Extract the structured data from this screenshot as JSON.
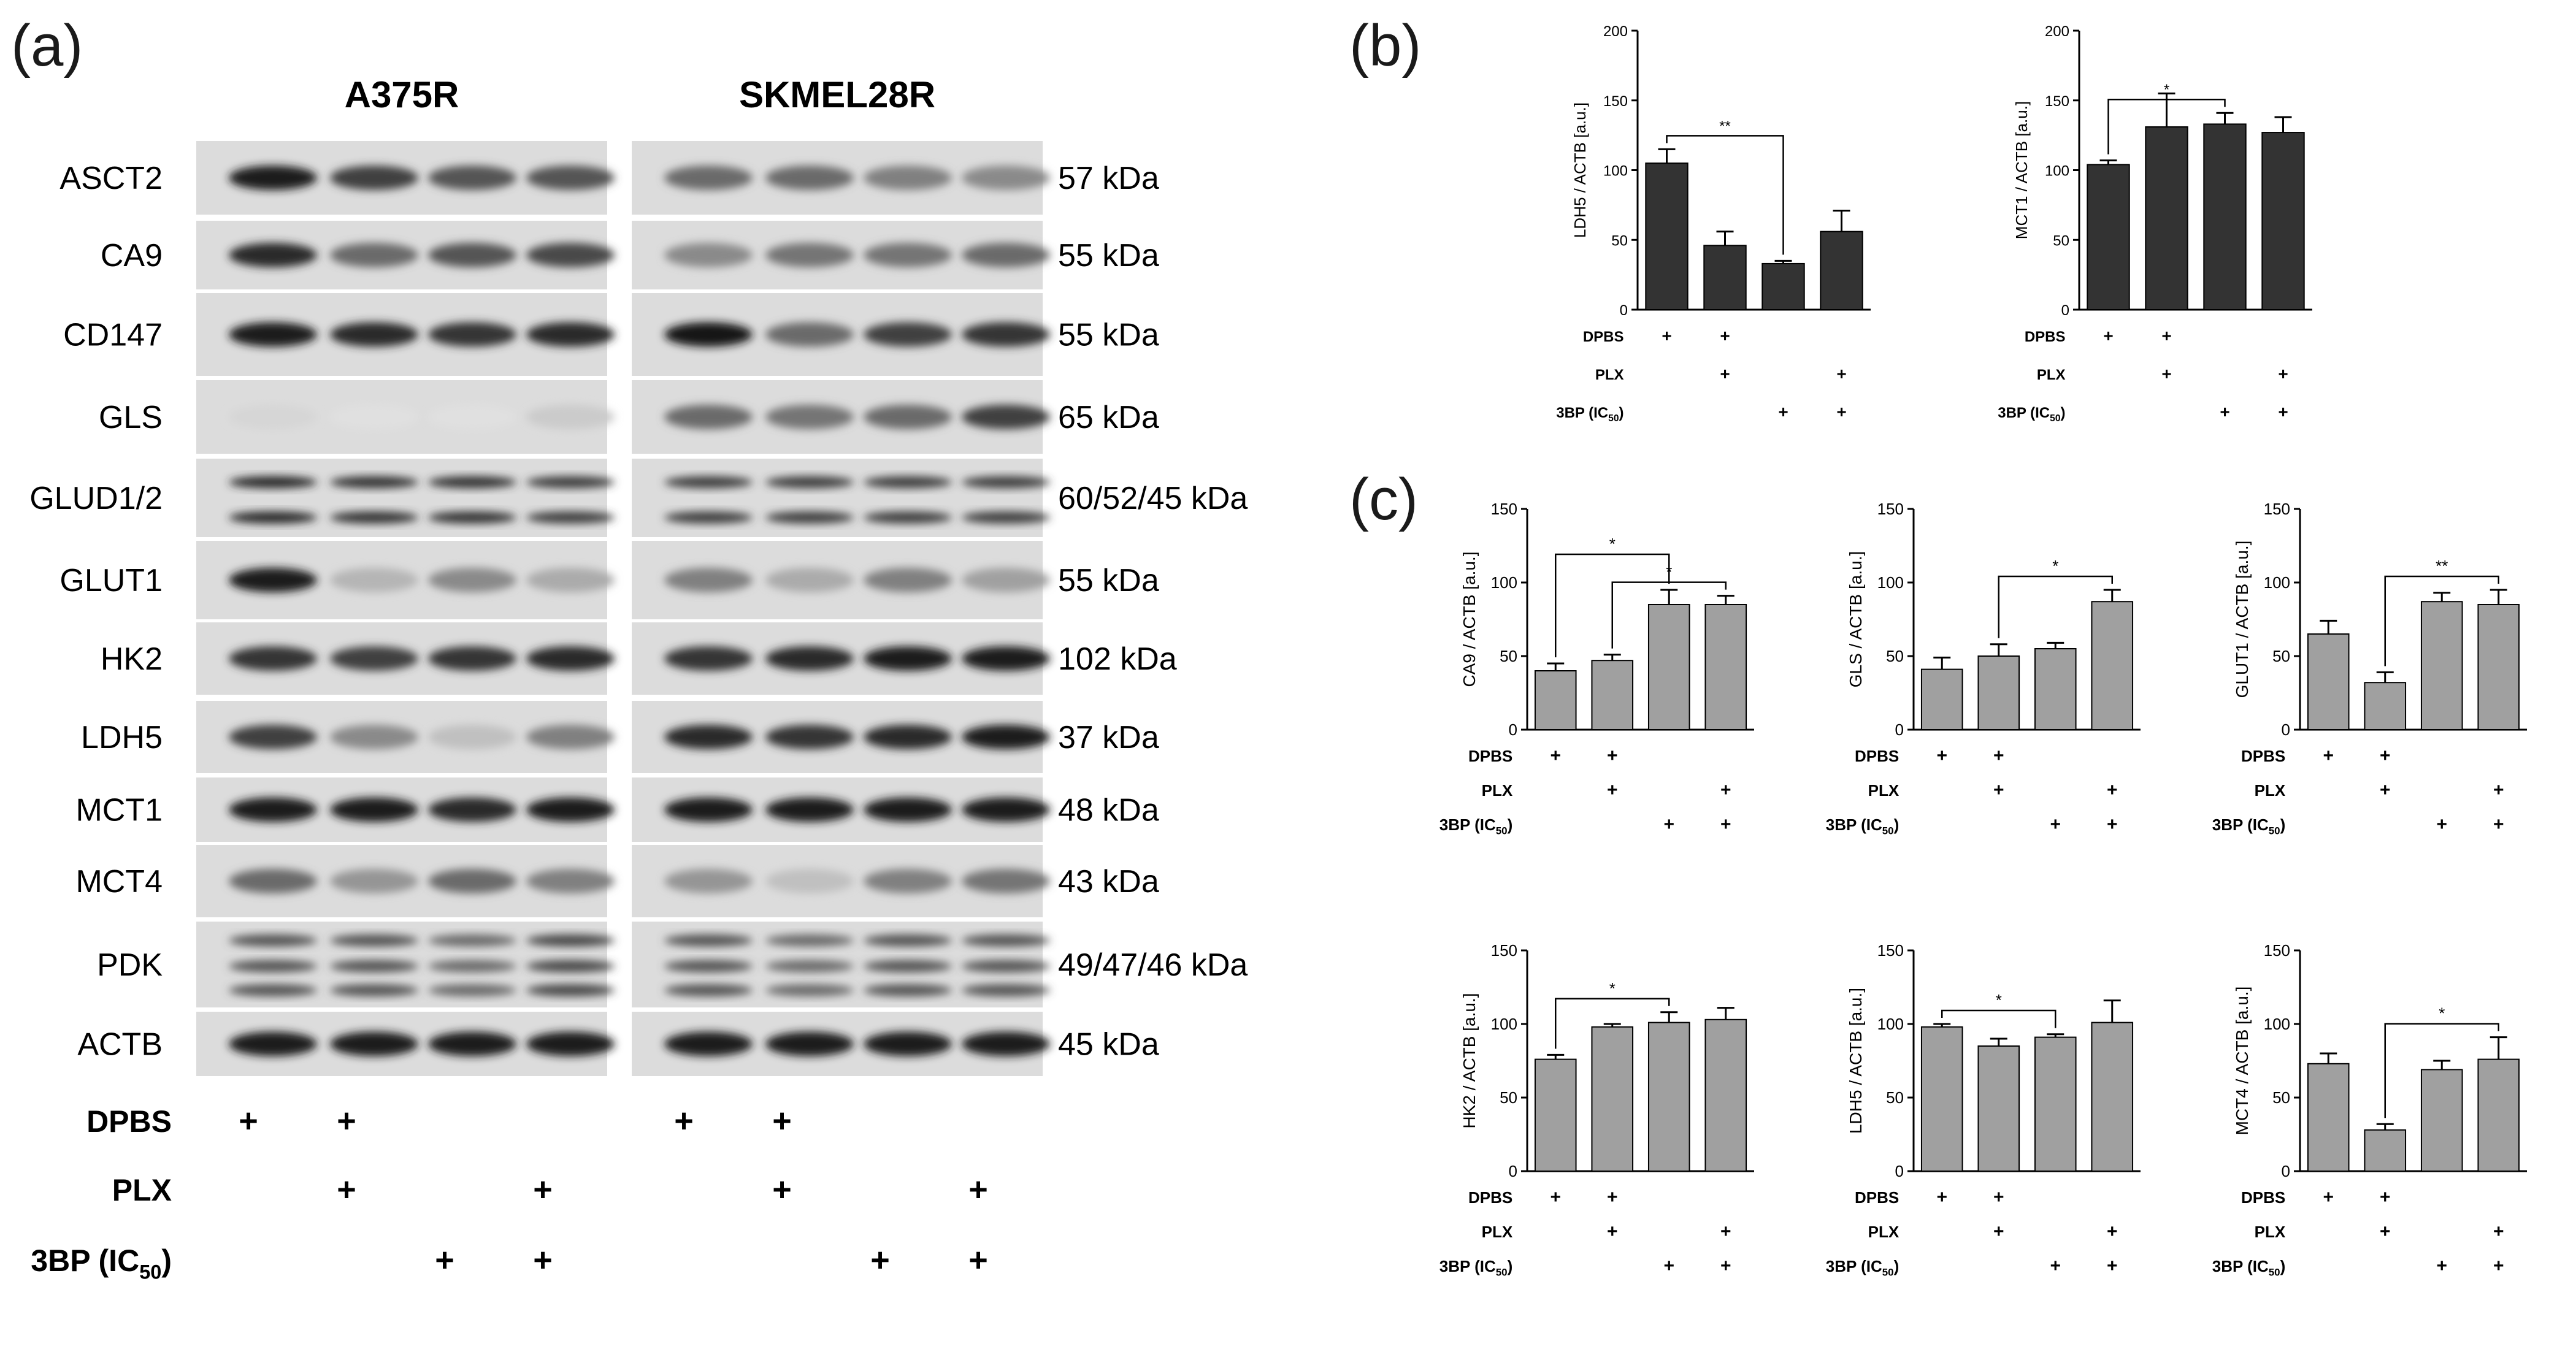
{
  "panel_labels": {
    "a": "(a)",
    "b": "(b)",
    "c": "(c)"
  },
  "blot": {
    "cell_lines": [
      "A375R",
      "SKMEL28R"
    ],
    "proteins": [
      {
        "name": "ASCT2",
        "kda": "57 kDa"
      },
      {
        "name": "CA9",
        "kda": "55 kDa"
      },
      {
        "name": "CD147",
        "kda": "55 kDa"
      },
      {
        "name": "GLS",
        "kda": "65 kDa"
      },
      {
        "name": "GLUD1/2",
        "kda": "60/52/45 kDa"
      },
      {
        "name": "GLUT1",
        "kda": "55 kDa"
      },
      {
        "name": "HK2",
        "kda": "102 kDa"
      },
      {
        "name": "LDH5",
        "kda": "37 kDa"
      },
      {
        "name": "MCT1",
        "kda": "48 kDa"
      },
      {
        "name": "MCT4",
        "kda": "43 kDa"
      },
      {
        "name": "PDK",
        "kda": "49/47/46 kDa"
      },
      {
        "name": "ACTB",
        "kda": "45 kDa"
      }
    ],
    "treatments": [
      {
        "label": "DPBS",
        "marks": [
          1,
          1,
          0,
          0
        ]
      },
      {
        "label": "PLX",
        "marks": [
          0,
          1,
          0,
          1
        ]
      },
      {
        "label": "3BP (IC",
        "sub": "50",
        "suffix": ")",
        "marks": [
          0,
          0,
          1,
          1
        ]
      }
    ],
    "plus": "+"
  },
  "chart_common": {
    "treatments": [
      {
        "label": "DPBS",
        "marks": [
          1,
          1,
          0,
          0
        ]
      },
      {
        "label": "PLX",
        "marks": [
          0,
          1,
          0,
          1
        ]
      },
      {
        "label": "3BP (IC",
        "sub": "50",
        "suffix": ")",
        "marks": [
          0,
          0,
          1,
          1
        ]
      }
    ],
    "plus": "+"
  },
  "chart_data": [
    {
      "id": "b-ldh5",
      "panel": "b",
      "type": "bar",
      "ylabel": "LDH5 / ACTB [a.u.]",
      "ylim": [
        0,
        200
      ],
      "yticks": [
        0,
        50,
        100,
        150,
        200
      ],
      "values": [
        105,
        46,
        33,
        56
      ],
      "errors": [
        10,
        10,
        2,
        15
      ],
      "color": "#333333",
      "sig": [
        {
          "from": 0,
          "to": 2,
          "label": "**"
        }
      ]
    },
    {
      "id": "b-mct1",
      "panel": "b",
      "type": "bar",
      "ylabel": "MCT1 / ACTB [a.u.]",
      "ylim": [
        0,
        200
      ],
      "yticks": [
        0,
        50,
        100,
        150,
        200
      ],
      "values": [
        104,
        131,
        133,
        127
      ],
      "errors": [
        3,
        24,
        8,
        11
      ],
      "color": "#333333",
      "sig": [
        {
          "from": 0,
          "to": 2,
          "label": "*"
        }
      ]
    },
    {
      "id": "c-ca9",
      "panel": "c",
      "type": "bar",
      "ylabel": "CA9 / ACTB [a.u.]",
      "ylim": [
        0,
        150
      ],
      "yticks": [
        0,
        50,
        100,
        150
      ],
      "values": [
        40,
        47,
        85,
        85
      ],
      "errors": [
        5,
        4,
        10,
        6
      ],
      "color": "#a0a0a0",
      "sig": [
        {
          "from": 0,
          "to": 2,
          "label": "*"
        },
        {
          "from": 1,
          "to": 3,
          "label": "*"
        }
      ]
    },
    {
      "id": "c-gls",
      "panel": "c",
      "type": "bar",
      "ylabel": "GLS / ACTB [a.u.]",
      "ylim": [
        0,
        150
      ],
      "yticks": [
        0,
        50,
        100,
        150
      ],
      "values": [
        41,
        50,
        55,
        87
      ],
      "errors": [
        8,
        8,
        4,
        8
      ],
      "color": "#a0a0a0",
      "sig": [
        {
          "from": 1,
          "to": 3,
          "label": "*"
        }
      ]
    },
    {
      "id": "c-glut1",
      "panel": "c",
      "type": "bar",
      "ylabel": "GLUT1 / ACTB [a.u.]",
      "ylim": [
        0,
        150
      ],
      "yticks": [
        0,
        50,
        100,
        150
      ],
      "values": [
        65,
        32,
        87,
        85
      ],
      "errors": [
        9,
        7,
        6,
        10
      ],
      "color": "#a0a0a0",
      "sig": [
        {
          "from": 1,
          "to": 3,
          "label": "**"
        }
      ]
    },
    {
      "id": "c-hk2",
      "panel": "c",
      "type": "bar",
      "ylabel": "HK2 / ACTB [a.u.]",
      "ylim": [
        0,
        150
      ],
      "yticks": [
        0,
        50,
        100,
        150
      ],
      "values": [
        76,
        98,
        101,
        103
      ],
      "errors": [
        3,
        2,
        7,
        8
      ],
      "color": "#a0a0a0",
      "sig": [
        {
          "from": 0,
          "to": 2,
          "label": "*"
        }
      ]
    },
    {
      "id": "c-ldh5",
      "panel": "c",
      "type": "bar",
      "ylabel": "LDH5 / ACTB [a.u.]",
      "ylim": [
        0,
        150
      ],
      "yticks": [
        0,
        50,
        100,
        150
      ],
      "values": [
        98,
        85,
        91,
        101
      ],
      "errors": [
        2,
        5,
        2,
        15
      ],
      "color": "#a0a0a0",
      "sig": [
        {
          "from": 0,
          "to": 2,
          "label": "*"
        }
      ]
    },
    {
      "id": "c-mct4",
      "panel": "c",
      "type": "bar",
      "ylabel": "MCT4 / ACTB [a.u.]",
      "ylim": [
        0,
        150
      ],
      "yticks": [
        0,
        50,
        100,
        150
      ],
      "values": [
        73,
        28,
        69,
        76
      ],
      "errors": [
        7,
        4,
        6,
        15
      ],
      "color": "#a0a0a0",
      "sig": [
        {
          "from": 1,
          "to": 3,
          "label": "*"
        }
      ]
    }
  ]
}
